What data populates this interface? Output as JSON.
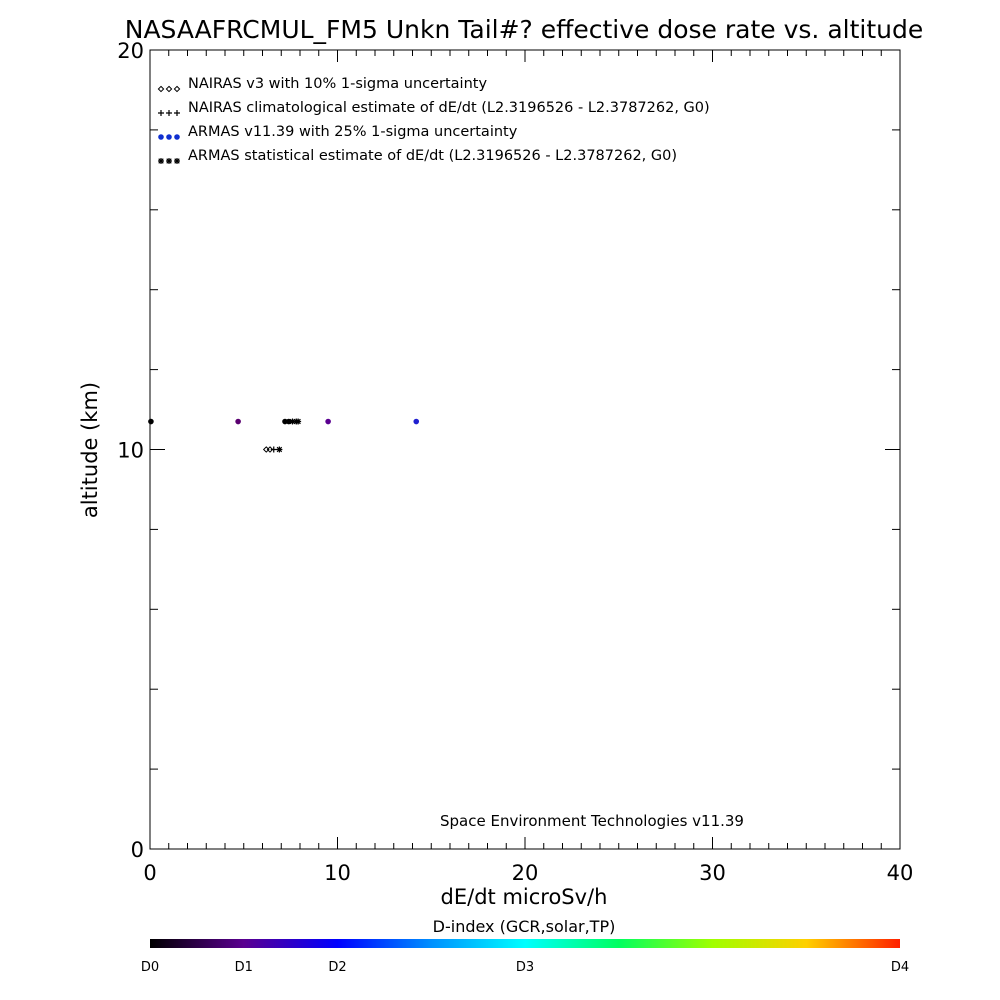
{
  "chart_data": {
    "type": "scatter",
    "title": "NASAAFRCMUL_FM5 Unkn Tail#? effective dose rate vs. altitude",
    "xlabel": "dE/dt microSv/h",
    "ylabel": "altitude (km)",
    "xlim": [
      0,
      40
    ],
    "ylim": [
      0,
      20
    ],
    "x_ticks": [
      0,
      10,
      20,
      30,
      40
    ],
    "y_ticks": [
      0,
      10,
      20
    ],
    "x_minor_step": 1,
    "y_minor_step": 2,
    "grid": false,
    "legend_position": "top-left",
    "legend": [
      {
        "symbol": "diamond",
        "label": "NAIRAS v3 with 10% 1-sigma uncertainty"
      },
      {
        "symbol": "plus",
        "label": "NAIRAS climatological estimate of dE/dt (L2.3196526 - L2.3787262, G0)"
      },
      {
        "symbol": "dot",
        "label": "ARMAS v11.39 with 25% 1-sigma uncertainty"
      },
      {
        "symbol": "asterisk",
        "label": "ARMAS statistical estimate of dE/dt (L2.3196526 - L2.3787262, G0)"
      }
    ],
    "annotation": "Space Environment Technologies v11.39",
    "series": [
      {
        "symbol": "diamond",
        "points": [
          {
            "x": 6.2,
            "y": 10.0
          },
          {
            "x": 6.4,
            "y": 10.0
          }
        ]
      },
      {
        "symbol": "plus",
        "points": [
          {
            "x": 6.6,
            "y": 10.0
          }
        ]
      },
      {
        "symbol": "asterisk",
        "points": [
          {
            "x": 6.9,
            "y": 10.0
          },
          {
            "x": 7.6,
            "y": 10.7
          },
          {
            "x": 7.8,
            "y": 10.7
          },
          {
            "x": 7.9,
            "y": 10.7
          }
        ]
      },
      {
        "symbol": "dot",
        "points": [
          {
            "x": 0.05,
            "y": 10.7,
            "color": "#000000"
          },
          {
            "x": 4.7,
            "y": 10.7,
            "color": "#5a0070"
          },
          {
            "x": 7.2,
            "y": 10.7,
            "color": "#000000"
          },
          {
            "x": 7.4,
            "y": 10.7,
            "color": "#000000"
          },
          {
            "x": 9.5,
            "y": 10.7,
            "color": "#5a0090"
          },
          {
            "x": 14.2,
            "y": 10.7,
            "color": "#2020d0"
          }
        ]
      }
    ],
    "colorbar": {
      "title": "D-index (GCR,solar,TP)",
      "labels": [
        {
          "label": "D0",
          "pos": 0.0
        },
        {
          "label": "D1",
          "pos": 0.125
        },
        {
          "label": "D2",
          "pos": 0.25
        },
        {
          "label": "D3",
          "pos": 0.5
        },
        {
          "label": "D4",
          "pos": 1.0
        }
      ],
      "stops": [
        {
          "pos": 0.0,
          "color": "#000000"
        },
        {
          "pos": 0.125,
          "color": "#5a0090"
        },
        {
          "pos": 0.25,
          "color": "#0000ff"
        },
        {
          "pos": 0.375,
          "color": "#0090ff"
        },
        {
          "pos": 0.5,
          "color": "#00ffff"
        },
        {
          "pos": 0.625,
          "color": "#00ff60"
        },
        {
          "pos": 0.75,
          "color": "#a0ff00"
        },
        {
          "pos": 0.875,
          "color": "#ffd000"
        },
        {
          "pos": 1.0,
          "color": "#ff2000"
        }
      ]
    }
  }
}
